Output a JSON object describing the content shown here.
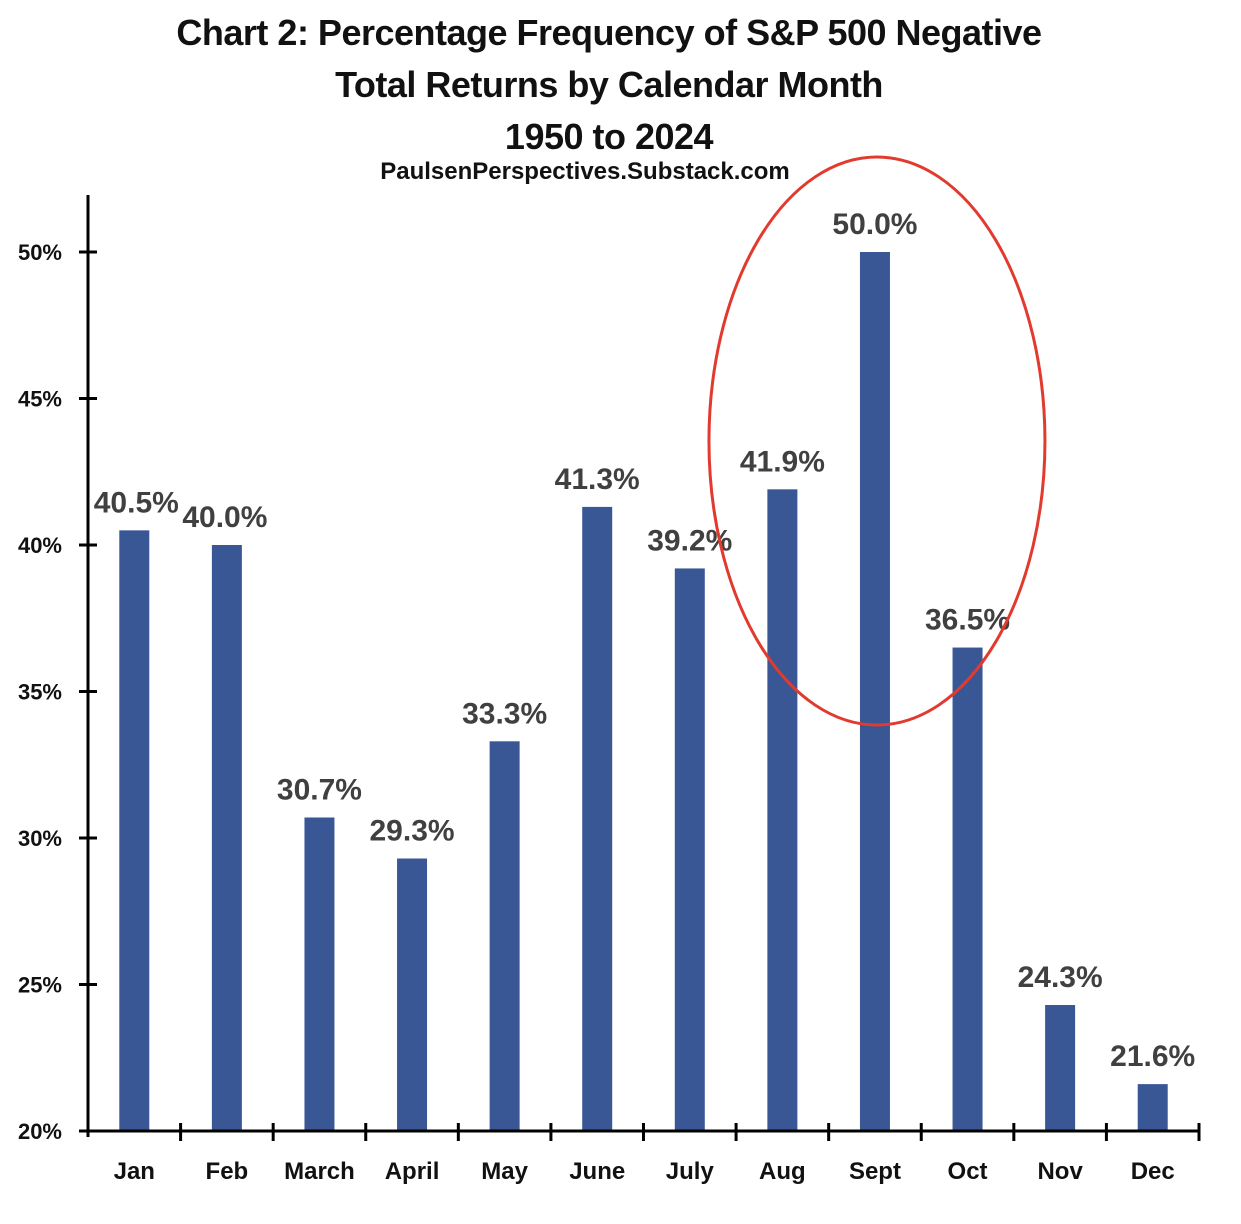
{
  "chart_data": {
    "type": "bar",
    "title_lines": [
      "Chart 2: Percentage Frequency of S&P 500 Negative",
      "Total Returns by Calendar Month",
      "1950 to 2024"
    ],
    "subtitle": "PaulsenPerspectives.Substack.com",
    "xlabel": "",
    "ylabel": "",
    "categories": [
      "Jan",
      "Feb",
      "March",
      "April",
      "May",
      "June",
      "July",
      "Aug",
      "Sept",
      "Oct",
      "Nov",
      "Dec"
    ],
    "values": [
      40.5,
      40.0,
      30.7,
      29.3,
      33.3,
      41.3,
      39.2,
      41.9,
      50.0,
      36.5,
      24.3,
      21.6
    ],
    "data_labels": [
      "40.5%",
      "40.0%",
      "30.7%",
      "29.3%",
      "33.3%",
      "41.3%",
      "39.2%",
      "41.9%",
      "50.0%",
      "36.5%",
      "24.3%",
      "21.6%"
    ],
    "ylim": [
      20,
      52
    ],
    "yticks": [
      20,
      25,
      30,
      35,
      40,
      45,
      50
    ],
    "ytick_labels": [
      "20%",
      "25%",
      "30%",
      "35%",
      "40%",
      "45%",
      "50%"
    ],
    "grid": false,
    "legend": "none",
    "bar_color": "#3A5795",
    "annotation": {
      "type": "ellipse",
      "color": "#E23A2E",
      "highlights": [
        "Aug",
        "Sept",
        "Oct"
      ]
    }
  }
}
